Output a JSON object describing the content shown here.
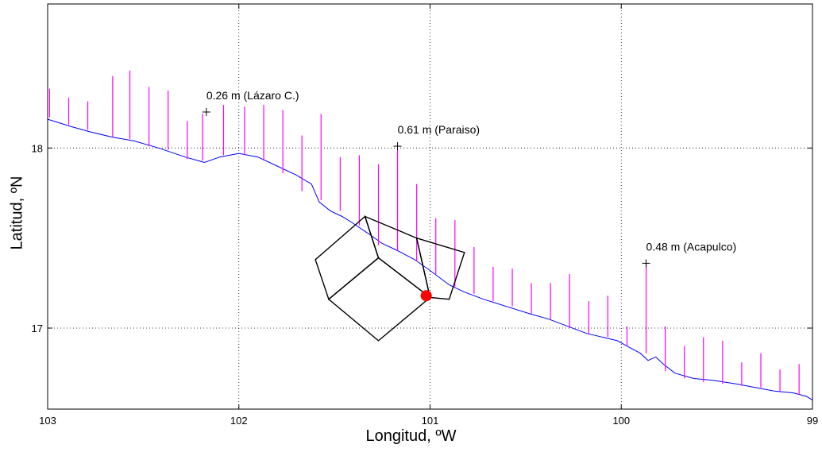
{
  "chart_data": {
    "type": "map",
    "xlabel": "Longitud, ºW",
    "ylabel": "Latitud, ºN",
    "xlim": [
      103,
      99
    ],
    "ylim": [
      16.55,
      18.8
    ],
    "x_ticks": [
      103,
      102,
      101,
      100,
      99
    ],
    "y_ticks": [
      17,
      18
    ],
    "grid": true,
    "grid_style": "dotted",
    "colors": {
      "coast": "#0000ff",
      "bars": "#ff00ff",
      "boxes": "#000000",
      "epicenter": "#ff0000"
    },
    "coastline": [
      [
        103,
        18.16
      ],
      [
        102.88,
        18.12
      ],
      [
        102.78,
        18.09
      ],
      [
        102.66,
        18.06
      ],
      [
        102.55,
        18.04
      ],
      [
        102.42,
        18.0
      ],
      [
        102.28,
        17.95
      ],
      [
        102.18,
        17.92
      ],
      [
        102.1,
        17.95
      ],
      [
        102.0,
        17.97
      ],
      [
        101.9,
        17.95
      ],
      [
        101.8,
        17.9
      ],
      [
        101.7,
        17.85
      ],
      [
        101.62,
        17.8
      ],
      [
        101.58,
        17.7
      ],
      [
        101.52,
        17.65
      ],
      [
        101.46,
        17.62
      ],
      [
        101.4,
        17.58
      ],
      [
        101.33,
        17.53
      ],
      [
        101.25,
        17.47
      ],
      [
        101.17,
        17.43
      ],
      [
        101.08,
        17.38
      ],
      [
        101.0,
        17.32
      ],
      [
        100.95,
        17.28
      ],
      [
        100.9,
        17.24
      ],
      [
        100.82,
        17.2
      ],
      [
        100.72,
        17.16
      ],
      [
        100.6,
        17.12
      ],
      [
        100.48,
        17.08
      ],
      [
        100.38,
        17.05
      ],
      [
        100.28,
        17.01
      ],
      [
        100.18,
        16.97
      ],
      [
        100.1,
        16.95
      ],
      [
        100.02,
        16.93
      ],
      [
        99.97,
        16.9
      ],
      [
        99.9,
        16.86
      ],
      [
        99.86,
        16.82
      ],
      [
        99.82,
        16.84
      ],
      [
        99.78,
        16.8
      ],
      [
        99.72,
        16.75
      ],
      [
        99.62,
        16.72
      ],
      [
        99.52,
        16.71
      ],
      [
        99.4,
        16.69
      ],
      [
        99.3,
        16.67
      ],
      [
        99.2,
        16.65
      ],
      [
        99.1,
        16.64
      ],
      [
        99.03,
        16.62
      ],
      [
        99.0,
        16.6
      ]
    ],
    "wave_bars": [
      [
        102.99,
        18.33,
        18.17
      ],
      [
        102.89,
        18.28,
        18.13
      ],
      [
        102.79,
        18.26,
        18.1
      ],
      [
        102.66,
        18.4,
        18.06
      ],
      [
        102.57,
        18.43,
        18.05
      ],
      [
        102.47,
        18.34,
        18.01
      ],
      [
        102.37,
        18.32,
        17.99
      ],
      [
        102.27,
        18.15,
        17.94
      ],
      [
        102.19,
        18.19,
        17.93
      ],
      [
        102.08,
        18.24,
        17.96
      ],
      [
        101.97,
        18.23,
        17.96
      ],
      [
        101.87,
        18.24,
        17.93
      ],
      [
        101.77,
        18.21,
        17.86
      ],
      [
        101.67,
        18.07,
        17.76
      ],
      [
        101.57,
        18.19,
        17.71
      ],
      [
        101.47,
        17.95,
        17.65
      ],
      [
        101.37,
        17.96,
        17.57
      ],
      [
        101.27,
        17.91,
        17.46
      ],
      [
        101.17,
        17.99,
        17.43
      ],
      [
        101.07,
        17.8,
        17.37
      ],
      [
        100.97,
        17.61,
        17.3
      ],
      [
        100.87,
        17.6,
        17.23
      ],
      [
        100.77,
        17.45,
        17.19
      ],
      [
        100.67,
        17.34,
        17.15
      ],
      [
        100.57,
        17.33,
        17.12
      ],
      [
        100.47,
        17.25,
        17.08
      ],
      [
        100.37,
        17.25,
        17.05
      ],
      [
        100.27,
        17.3,
        17.0
      ],
      [
        100.17,
        17.15,
        16.97
      ],
      [
        100.07,
        17.18,
        16.95
      ],
      [
        99.97,
        17.01,
        16.9
      ],
      [
        99.87,
        17.36,
        16.86
      ],
      [
        99.77,
        17.01,
        16.76
      ],
      [
        99.67,
        16.9,
        16.72
      ],
      [
        99.57,
        16.95,
        16.7
      ],
      [
        99.47,
        16.93,
        16.69
      ],
      [
        99.37,
        16.81,
        16.68
      ],
      [
        99.27,
        16.86,
        16.67
      ],
      [
        99.17,
        16.77,
        16.65
      ],
      [
        99.07,
        16.8,
        16.63
      ]
    ],
    "fault_segments": [
      {
        "corners": [
          [
            101.34,
            17.62
          ],
          [
            101.6,
            17.38
          ],
          [
            101.53,
            17.16
          ],
          [
            101.27,
            17.39
          ]
        ]
      },
      {
        "corners": [
          [
            101.27,
            17.39
          ],
          [
            101.53,
            17.16
          ],
          [
            101.27,
            16.93
          ],
          [
            101.0,
            17.17
          ]
        ]
      },
      {
        "corners": [
          [
            101.34,
            17.62
          ],
          [
            101.07,
            17.5
          ],
          [
            101.0,
            17.17
          ],
          [
            101.27,
            17.39
          ]
        ]
      },
      {
        "corners": [
          [
            101.07,
            17.5
          ],
          [
            100.82,
            17.42
          ],
          [
            100.9,
            17.16
          ],
          [
            101.0,
            17.17
          ]
        ]
      }
    ],
    "annotations": [
      {
        "label": "0.26 m (Lázaro C.)",
        "lon": 102.17,
        "lat": 18.2
      },
      {
        "label": "0.61 m (Paraiso)",
        "lon": 101.17,
        "lat": 18.01
      },
      {
        "label": "0.48 m (Acapulco)",
        "lon": 99.87,
        "lat": 17.36
      }
    ],
    "epicenter": {
      "lon": 101.02,
      "lat": 17.18
    }
  }
}
